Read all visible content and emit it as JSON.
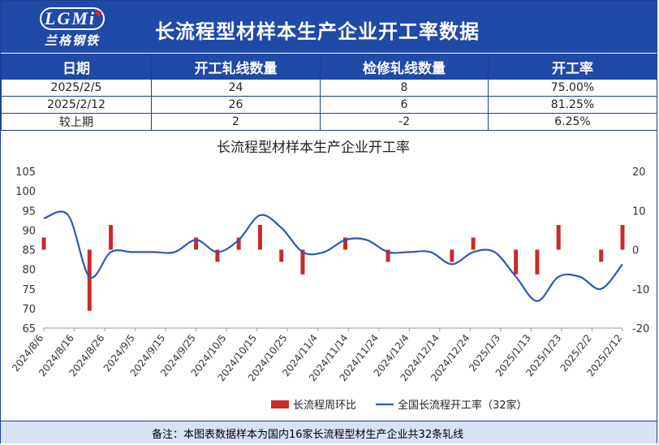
{
  "header": {
    "logo_text": "LGMi",
    "logo_cn": "兰格钢铁",
    "title": "长流程型材样本生产企业开工率数据"
  },
  "table": {
    "columns": [
      "日期",
      "开工轧线数量",
      "检修轧线数量",
      "开工率"
    ],
    "rows": [
      [
        "2025/2/5",
        "24",
        "8",
        "75.00%"
      ],
      [
        "2025/2/12",
        "26",
        "6",
        "81.25%"
      ],
      [
        "较上期",
        "2",
        "-2",
        "6.25%"
      ]
    ]
  },
  "chart_data": {
    "type": "bar+line",
    "title": "长流程型材样本生产企业开工率",
    "x_tick_labels": [
      "2024/8/6",
      "2024/8/16",
      "2024/8/26",
      "2024/9/5",
      "2024/9/15",
      "2024/9/25",
      "2024/10/5",
      "2024/10/15",
      "2024/10/25",
      "2024/11/4",
      "2024/11/14",
      "2024/11/24",
      "2024/12/4",
      "2024/12/14",
      "2024/12/24",
      "2025/1/3",
      "2025/1/13",
      "2025/1/23",
      "2025/2/2",
      "2025/2/12"
    ],
    "left_axis": {
      "min": 65,
      "max": 105,
      "step": 5
    },
    "right_axis": {
      "min": -20,
      "max": 20,
      "step": 10
    },
    "x_range": [
      "2024/8/6",
      "2025/2/12"
    ],
    "legend_position": "bottom",
    "series": [
      {
        "name": "长流程周环比",
        "type": "bar",
        "axis": "right",
        "color": "#c92a2a",
        "points": [
          [
            "2024/8/6",
            3.1
          ],
          [
            "2024/8/21",
            -15.6
          ],
          [
            "2024/8/28",
            6.3
          ],
          [
            "2024/9/25",
            3.1
          ],
          [
            "2024/10/2",
            -3.1
          ],
          [
            "2024/10/9",
            3.1
          ],
          [
            "2024/10/16",
            6.3
          ],
          [
            "2024/10/23",
            -3.1
          ],
          [
            "2024/10/30",
            -6.3
          ],
          [
            "2024/11/13",
            3.1
          ],
          [
            "2024/11/27",
            -3.1
          ],
          [
            "2024/12/18",
            -3.1
          ],
          [
            "2024/12/25",
            3.1
          ],
          [
            "2025/1/8",
            -6.3
          ],
          [
            "2025/1/15",
            -6.3
          ],
          [
            "2025/1/22",
            6.3
          ],
          [
            "2025/2/5",
            -3.1
          ],
          [
            "2025/2/12",
            6.3
          ]
        ]
      },
      {
        "name": "全国长流程开工率（32家）",
        "type": "line",
        "axis": "left",
        "color": "#2e57b6",
        "points": [
          [
            "2024/8/6",
            93.0
          ],
          [
            "2024/8/14",
            93.8
          ],
          [
            "2024/8/21",
            78.1
          ],
          [
            "2024/8/28",
            84.4
          ],
          [
            "2024/9/4",
            84.4
          ],
          [
            "2024/9/11",
            84.4
          ],
          [
            "2024/9/18",
            84.4
          ],
          [
            "2024/9/25",
            87.5
          ],
          [
            "2024/10/2",
            84.4
          ],
          [
            "2024/10/9",
            87.5
          ],
          [
            "2024/10/16",
            93.8
          ],
          [
            "2024/10/23",
            90.6
          ],
          [
            "2024/10/30",
            84.4
          ],
          [
            "2024/11/6",
            84.4
          ],
          [
            "2024/11/13",
            87.5
          ],
          [
            "2024/11/20",
            87.5
          ],
          [
            "2024/11/27",
            84.4
          ],
          [
            "2024/12/4",
            84.4
          ],
          [
            "2024/12/11",
            84.4
          ],
          [
            "2024/12/18",
            81.3
          ],
          [
            "2024/12/25",
            84.4
          ],
          [
            "2025/1/1",
            84.4
          ],
          [
            "2025/1/8",
            78.1
          ],
          [
            "2025/1/15",
            71.9
          ],
          [
            "2025/1/22",
            78.1
          ],
          [
            "2025/1/29",
            78.1
          ],
          [
            "2025/2/5",
            75.0
          ],
          [
            "2025/2/12",
            81.3
          ]
        ]
      }
    ]
  },
  "footer": {
    "note": "备注：本图表数据样本为国内16家长流程型材生产企业共32条轧线"
  }
}
